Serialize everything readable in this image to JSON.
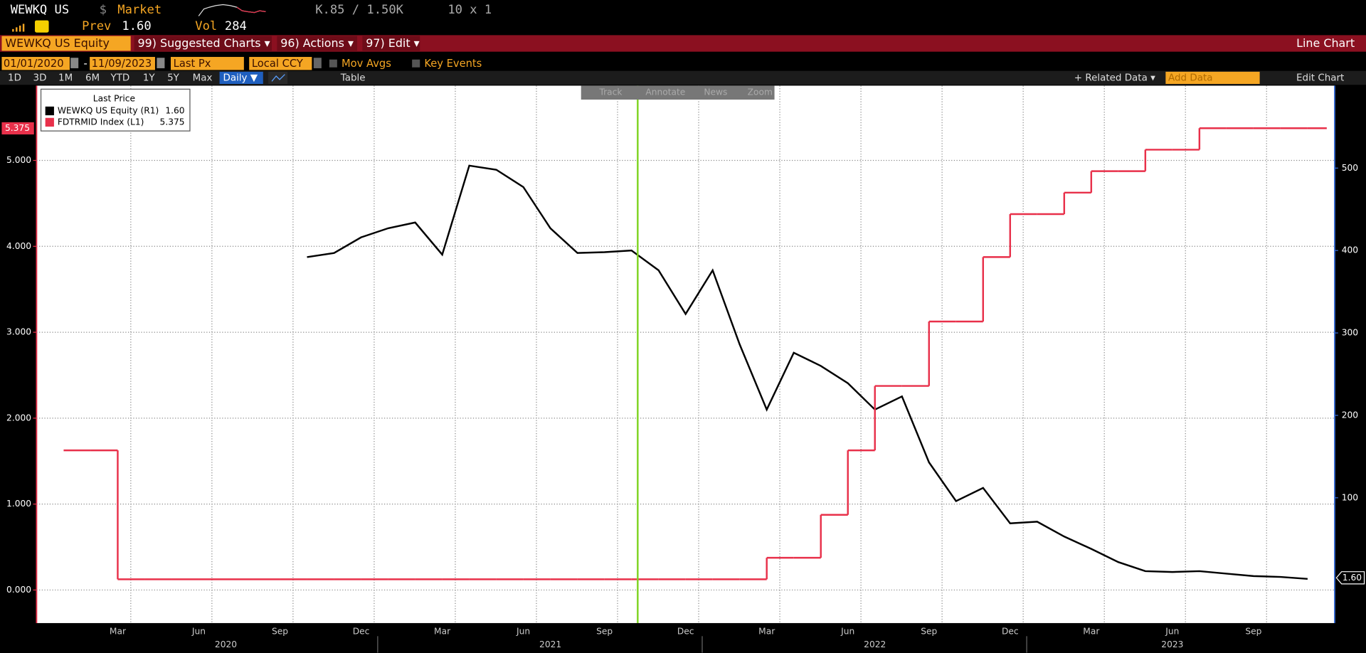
{
  "header": {
    "ticker": "WEWKQ US",
    "currency": "$",
    "market": "Market",
    "prev_label": "Prev",
    "prev": "1.60",
    "vol_label": "Vol",
    "vol": "284",
    "bid_ask": "K.85 / 1.50K",
    "size": "10 x 1"
  },
  "menu": {
    "security": "WEWKQ US Equity",
    "items": [
      "99) Suggested Charts ▾",
      "96) Actions ▾",
      "97) Edit ▾"
    ],
    "chart_kind": "Line Chart"
  },
  "settings": {
    "start": "01/01/2020",
    "dash": "-",
    "end": "11/09/2023",
    "field": "Last Px",
    "currency": "Local CCY",
    "mov_avgs": "Mov Avgs",
    "key_events": "Key Events"
  },
  "toolbar": {
    "periods": [
      "1D",
      "3D",
      "1M",
      "6M",
      "YTD",
      "1Y",
      "5Y",
      "Max"
    ],
    "frequency": "Daily ▼",
    "table": "Table",
    "related": "+ Related Data ▾",
    "add_data": "Add Data",
    "edit_chart": "Edit Chart"
  },
  "overlay_tools": [
    "Track",
    "Annotate",
    "News",
    "Zoom"
  ],
  "chart_data": {
    "type": "line",
    "legend": {
      "title": "Last Price",
      "values": [
        "1.60",
        "5.375"
      ]
    },
    "x": [
      "2020-01",
      "2020-02",
      "2020-03",
      "2020-04",
      "2020-05",
      "2020-06",
      "2020-07",
      "2020-08",
      "2020-09",
      "2020-10",
      "2020-11",
      "2020-12",
      "2021-01",
      "2021-02",
      "2021-03",
      "2021-04",
      "2021-05",
      "2021-06",
      "2021-07",
      "2021-08",
      "2021-09",
      "2021-10",
      "2021-11",
      "2021-12",
      "2022-01",
      "2022-02",
      "2022-03",
      "2022-04",
      "2022-05",
      "2022-06",
      "2022-07",
      "2022-08",
      "2022-09",
      "2022-10",
      "2022-11",
      "2022-12",
      "2023-01",
      "2023-02",
      "2023-03",
      "2023-04",
      "2023-05",
      "2023-06",
      "2023-07",
      "2023-08",
      "2023-09",
      "2023-10",
      "2023-11"
    ],
    "series": [
      {
        "name": "WEWKQ US Equity  (R1)",
        "color": "#000000",
        "axis": "y2",
        "values": [
          null,
          null,
          null,
          null,
          null,
          null,
          null,
          null,
          null,
          392,
          397,
          416,
          427,
          434,
          395,
          503,
          498,
          477,
          427,
          397,
          398,
          400,
          376,
          323,
          376,
          286,
          207,
          276,
          260,
          239,
          207,
          223,
          143,
          96,
          112,
          69,
          71,
          53,
          38,
          22,
          11,
          10,
          11,
          8,
          5,
          4,
          1.6
        ]
      },
      {
        "name": "FDTRMID Index  (L1)",
        "color": "#e8304a",
        "step": true,
        "values": [
          1.625,
          1.625,
          0.125,
          0.125,
          0.125,
          0.125,
          0.125,
          0.125,
          0.125,
          0.125,
          0.125,
          0.125,
          0.125,
          0.125,
          0.125,
          0.125,
          0.125,
          0.125,
          0.125,
          0.125,
          0.125,
          0.125,
          0.125,
          0.125,
          0.125,
          0.125,
          0.375,
          0.375,
          0.875,
          1.625,
          2.375,
          2.375,
          3.125,
          3.125,
          3.875,
          4.375,
          4.375,
          4.625,
          4.875,
          4.875,
          5.125,
          5.125,
          5.375,
          5.375,
          5.375,
          5.375,
          5.375
        ]
      }
    ],
    "xlim": [
      "2019-12",
      "2023-12"
    ],
    "xticks": [
      {
        "value": "2020-03",
        "label": "Mar"
      },
      {
        "value": "2020-06",
        "label": "Jun"
      },
      {
        "value": "2020-09",
        "label": "Sep"
      },
      {
        "value": "2020-12",
        "label": "Dec"
      },
      {
        "value": "2021-03",
        "label": "Mar"
      },
      {
        "value": "2021-06",
        "label": "Jun"
      },
      {
        "value": "2021-09",
        "label": "Sep"
      },
      {
        "value": "2021-12",
        "label": "Dec"
      },
      {
        "value": "2022-03",
        "label": "Mar"
      },
      {
        "value": "2022-06",
        "label": "Jun"
      },
      {
        "value": "2022-09",
        "label": "Sep"
      },
      {
        "value": "2022-12",
        "label": "Dec"
      },
      {
        "value": "2023-03",
        "label": "Mar"
      },
      {
        "value": "2023-06",
        "label": "Jun"
      },
      {
        "value": "2023-09",
        "label": "Sep"
      }
    ],
    "year_ticks": [
      {
        "value": "2020-07",
        "label": "2020"
      },
      {
        "value": "2021-07",
        "label": "2021"
      },
      {
        "value": "2022-07",
        "label": "2022"
      },
      {
        "value": "2023-06",
        "label": "2023"
      }
    ],
    "ylim": [
      -0.385,
      5.87
    ],
    "yticks": [
      {
        "value": 0,
        "label": "0.000"
      },
      {
        "value": 1,
        "label": "1.000"
      },
      {
        "value": 2,
        "label": "2.000"
      },
      {
        "value": 3,
        "label": "3.000"
      },
      {
        "value": 4,
        "label": "4.000"
      },
      {
        "value": 5,
        "label": "5.000"
      }
    ],
    "y2lim": [
      -52,
      600
    ],
    "y2ticks": [
      100,
      200,
      300,
      400,
      500
    ],
    "grid": true
  }
}
